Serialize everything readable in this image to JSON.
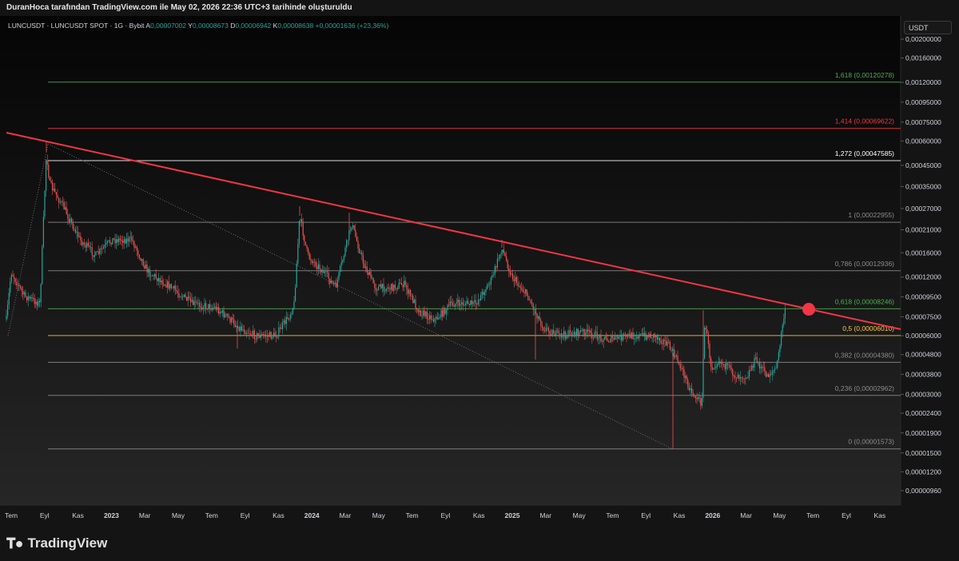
{
  "header": {
    "attribution": "DuranHoca tarafından TradingView.com ile May 02, 2026 22:36 UTC+3 tarihinde oluşturuldu"
  },
  "legend": {
    "title": "LUNCUSDT · LUNCUSDT SPOT · 1G · Bybit",
    "open_label": "A",
    "open": "0,00007002",
    "high_label": "Y",
    "high": "0,00008673",
    "low_label": "D",
    "low": "0,00006942",
    "close_label": "K",
    "close": "0,00008638",
    "change": "+0,00001636 (+23,36%)"
  },
  "price_axis": {
    "unit": "USDT",
    "ticks": [
      "0,00200000",
      "0,00160000",
      "0,00120000",
      "0,00095000",
      "0,00075000",
      "0,00060000",
      "0,00045000",
      "0,00035000",
      "0,00027000",
      "0,00021000",
      "0,00016000",
      "0,00012000",
      "0,00009500",
      "0,00007500",
      "0,00006000",
      "0,00004800",
      "0,00003800",
      "0,00003000",
      "0,00002400",
      "0,00001900",
      "0,00001500",
      "0,00001200",
      "0,00000960"
    ]
  },
  "time_axis": {
    "labels": [
      "Tem",
      "Eyl",
      "Kas",
      "2023",
      "Mar",
      "May",
      "Tem",
      "Eyl",
      "Kas",
      "2024",
      "Mar",
      "May",
      "Tem",
      "Eyl",
      "Kas",
      "2025",
      "Mar",
      "May",
      "Tem",
      "Eyl",
      "Kas",
      "2026",
      "Mar",
      "May",
      "Tem",
      "Eyl",
      "Kas"
    ]
  },
  "fib_levels": [
    {
      "label": "1,618 (0,00120278)",
      "price": 0.00120278,
      "color": "#4caf50"
    },
    {
      "label": "1,414 (0,00069622)",
      "price": 0.00069622,
      "color": "#f23645"
    },
    {
      "label": "1,272 (0,00047585)",
      "price": 0.00047585,
      "color": "#ffffff"
    },
    {
      "label": "1 (0,00022955)",
      "price": 0.00022955,
      "color": "#8c8c8c"
    },
    {
      "label": "0,786 (0,00012936)",
      "price": 0.00012936,
      "color": "#8c8c8c"
    },
    {
      "label": "0,618 (0,00008246)",
      "price": 8.246e-05,
      "color": "#4caf50"
    },
    {
      "label": "0,5 (0,00006010)",
      "price": 6.01e-05,
      "color": "#f7c948"
    },
    {
      "label": "0,382 (0,00004380)",
      "price": 4.38e-05,
      "color": "#8c8c8c"
    },
    {
      "label": "0,236 (0,00002962)",
      "price": 2.962e-05,
      "color": "#8c8c8c"
    },
    {
      "label": "0 (0,00001573)",
      "price": 1.573e-05,
      "color": "#8c8c8c"
    }
  ],
  "colors": {
    "trendline": "#f23645",
    "marker": "#f23645",
    "up_candle": "#26a69a",
    "down_candle": "#ef5350",
    "background": "#141414"
  },
  "brand": {
    "name": "TradingView",
    "logo_icon": "tradingview-logo-icon"
  }
}
